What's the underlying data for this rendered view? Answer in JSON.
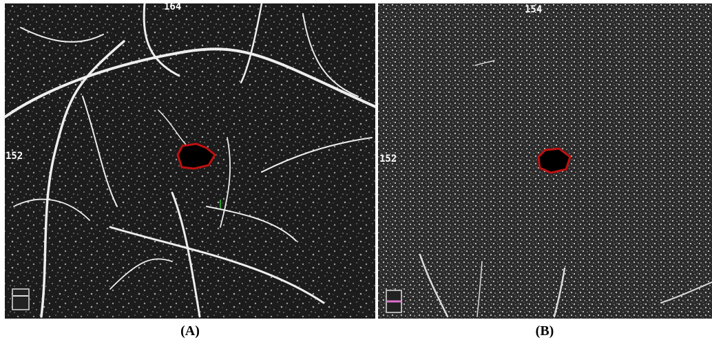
{
  "panels": [
    {
      "label": "(A)",
      "top_marker": "164",
      "left_marker": "152"
    },
    {
      "label": "(B)",
      "top_marker": "154",
      "left_marker": "152"
    }
  ]
}
